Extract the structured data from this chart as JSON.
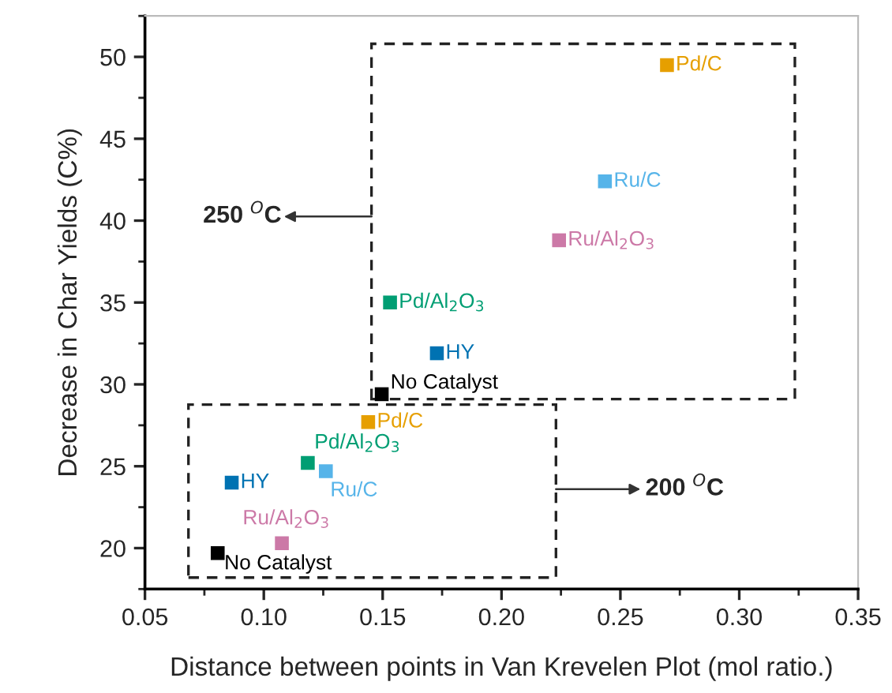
{
  "chart_data": {
    "type": "scatter",
    "xlabel": "Distance between points in Van Krevelen Plot (mol ratio.)",
    "ylabel": "Decrease in Char Yields (C%)",
    "xlim": [
      0.05,
      0.35
    ],
    "xticks": [
      {
        "value": 0.05,
        "label": "0.05"
      },
      {
        "value": 0.1,
        "label": "0.10"
      },
      {
        "value": 0.15,
        "label": "0.15"
      },
      {
        "value": 0.2,
        "label": "0.20"
      },
      {
        "value": 0.25,
        "label": "0.25"
      },
      {
        "value": 0.3,
        "label": "0.30"
      },
      {
        "value": 0.35,
        "label": "0.35"
      }
    ],
    "ylim": [
      17.5,
      52.5
    ],
    "yticks": [
      20,
      25,
      30,
      35,
      40,
      45,
      50
    ],
    "marker": "square",
    "grid": false,
    "legend": false,
    "annotations": [
      "250 $^{O}$C",
      "200 $^{O}$C"
    ],
    "series": [
      {
        "name": "No Catalyst",
        "color": "#000000",
        "x": [
          0.0806,
          0.1496
        ],
        "values": [
          19.7,
          29.4
        ]
      },
      {
        "name": "HY",
        "color": "#0072b2",
        "x": [
          0.0865,
          0.1728
        ],
        "values": [
          24.0,
          31.9
        ]
      },
      {
        "name": "Pd/Al$_{2}$O$_{3}$",
        "color": "#009e73",
        "x": [
          0.1185,
          0.1531
        ],
        "values": [
          25.2,
          35.0
        ]
      },
      {
        "name": "Ru/Al$_{2}$O$_{3}$",
        "color": "#cc79a7",
        "x": [
          0.1076,
          0.2242
        ],
        "values": [
          20.3,
          38.8
        ]
      },
      {
        "name": "Ru/C",
        "color": "#56b4e9",
        "x": [
          0.1261,
          0.2435
        ],
        "values": [
          24.7,
          42.4
        ]
      },
      {
        "name": "Pd/C",
        "color": "#e69f00",
        "x": [
          0.1439,
          0.2696
        ],
        "values": [
          27.7,
          49.5
        ]
      }
    ]
  }
}
